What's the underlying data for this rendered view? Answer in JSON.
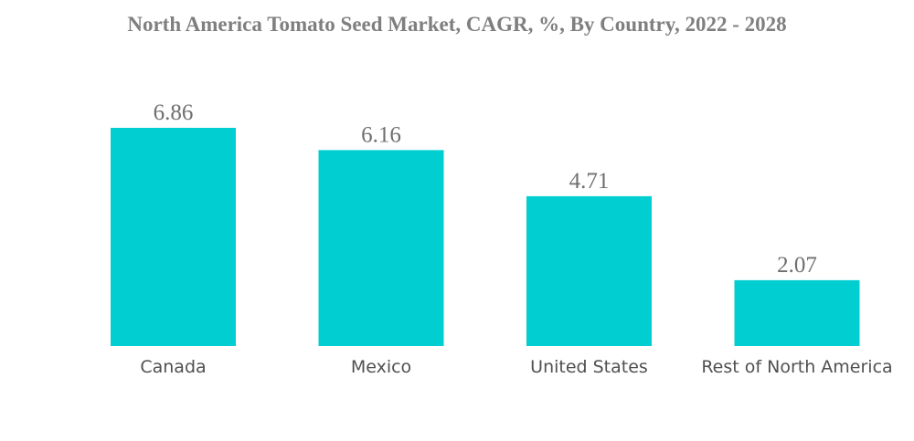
{
  "chart_data": {
    "type": "bar",
    "title": "North America Tomato Seed Market, CAGR, %, By Country, 2022 - 2028",
    "categories": [
      "Canada",
      "Mexico",
      "United States",
      "Rest of North America"
    ],
    "values": [
      6.86,
      6.16,
      4.71,
      2.07
    ],
    "value_labels": [
      "6.86",
      "6.16",
      "4.71",
      "2.07"
    ],
    "xlabel": "",
    "ylabel": "",
    "ylim": [
      0,
      6.86
    ],
    "grid": false,
    "legend": "none",
    "bar_color": "#00CED1"
  }
}
